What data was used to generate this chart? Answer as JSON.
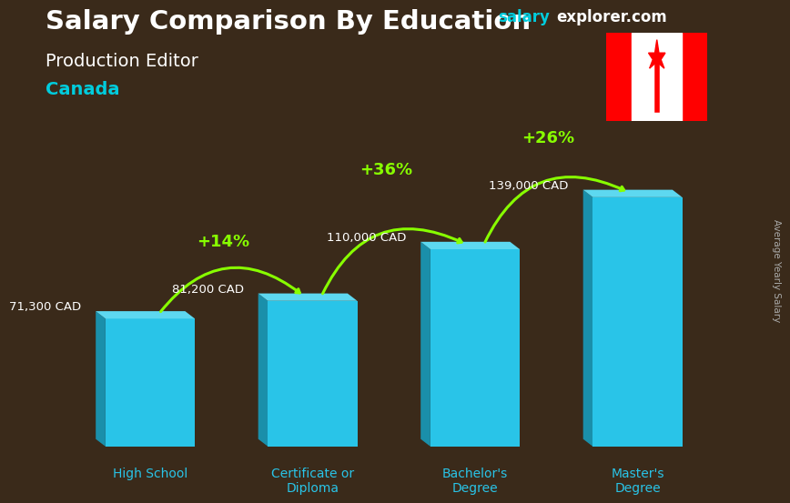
{
  "title_main": "Salary Comparison By Education",
  "title_sub": "Production Editor",
  "title_country": "Canada",
  "watermark_salary": "salary",
  "watermark_rest": "explorer.com",
  "ylabel": "Average Yearly Salary",
  "categories": [
    "High School",
    "Certificate or\nDiploma",
    "Bachelor's\nDegree",
    "Master's\nDegree"
  ],
  "values": [
    71300,
    81200,
    110000,
    139000
  ],
  "value_labels": [
    "71,300 CAD",
    "81,200 CAD",
    "110,000 CAD",
    "139,000 CAD"
  ],
  "pct_labels": [
    "+14%",
    "+36%",
    "+26%"
  ],
  "bar_face_color": "#29c4e8",
  "bar_side_color": "#1a8faa",
  "bar_top_color": "#5dd8f0",
  "title_color": "#ffffff",
  "subtitle_color": "#ffffff",
  "country_color": "#00ccdd",
  "value_label_color": "#ffffff",
  "pct_color": "#88ff00",
  "arrow_color": "#88ff00",
  "watermark_salary_color": "#00ccdd",
  "watermark_rest_color": "#ffffff",
  "ylabel_color": "#aaaaaa",
  "xlabel_color": "#29c4e8",
  "bg_color": "#3a2a1a"
}
